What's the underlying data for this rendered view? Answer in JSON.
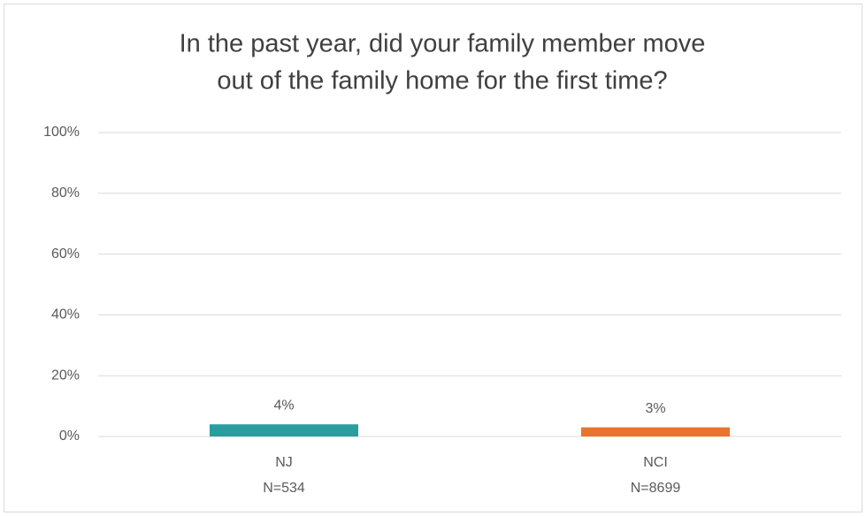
{
  "chart_data": {
    "type": "bar",
    "title": [
      "In the past year, did your family member move",
      "out of the family home for the first time?"
    ],
    "categories": [
      [
        "NJ",
        "N=534"
      ],
      [
        "NCI",
        "N=8699"
      ]
    ],
    "values": [
      4,
      3
    ],
    "value_labels": [
      "4%",
      "3%"
    ],
    "colors": [
      "#2a9d9f",
      "#e8742d"
    ],
    "ylim": [
      0,
      100
    ],
    "yticks": [
      {
        "value": 0,
        "label": "0%"
      },
      {
        "value": 20,
        "label": "20%"
      },
      {
        "value": 40,
        "label": "40%"
      },
      {
        "value": 60,
        "label": "60%"
      },
      {
        "value": 80,
        "label": "80%"
      },
      {
        "value": 100,
        "label": "100%"
      }
    ],
    "grid": true
  }
}
